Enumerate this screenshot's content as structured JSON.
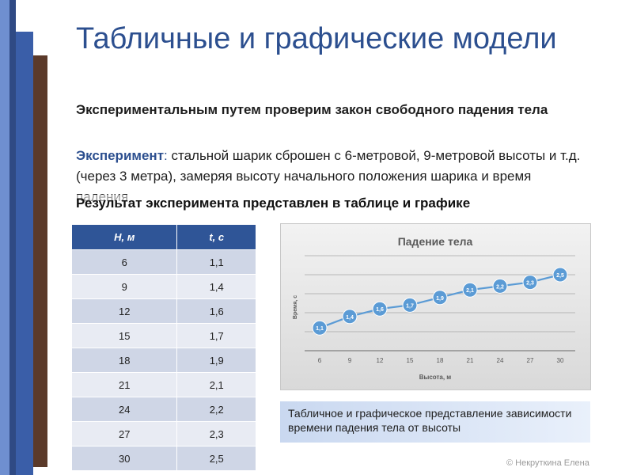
{
  "slide": {
    "title": "Табличные и графические модели",
    "intro": "Экспериментальным путем проверим закон свободного падения тела",
    "experiment_lead": "Эксперимент",
    "experiment_colon": ":",
    "experiment_text": " стальной шарик сброшен с 6-метровой, 9-метровой высоты и т.д. (через 3 метра), замеряя высоту начального положения шарика и время падения",
    "result_text": "Результат эксперимента представлен в таблице и графике",
    "caption": "Табличное и графическое представление зависимости времени падения тела от высоты",
    "copyright": "© Некруткина Елена"
  },
  "table": {
    "headers": [
      "H, м",
      "t, с"
    ],
    "rows": [
      [
        "6",
        "1,1"
      ],
      [
        "9",
        "1,4"
      ],
      [
        "12",
        "1,6"
      ],
      [
        "15",
        "1,7"
      ],
      [
        "18",
        "1,9"
      ],
      [
        "21",
        "2,1"
      ],
      [
        "24",
        "2,2"
      ],
      [
        "27",
        "2,3"
      ],
      [
        "30",
        "2,5"
      ]
    ]
  },
  "chart_data": {
    "type": "line",
    "title": "Падение тела",
    "xlabel": "Высота, м",
    "ylabel": "Время, с",
    "x": [
      6,
      9,
      12,
      15,
      18,
      21,
      24,
      27,
      30
    ],
    "series": [
      {
        "values": [
          1.1,
          1.4,
          1.6,
          1.7,
          1.9,
          2.1,
          2.2,
          2.3,
          2.5
        ],
        "labels": [
          "1,1",
          "1,4",
          "1,6",
          "1,7",
          "1,9",
          "2,1",
          "2,2",
          "2,3",
          "2,5"
        ]
      }
    ],
    "ylim": [
      0.5,
      3.0
    ],
    "grid": true,
    "colors": {
      "line": "#5b9bd5",
      "marker": "#5b9bd5",
      "marker_text": "#ffffff"
    }
  }
}
